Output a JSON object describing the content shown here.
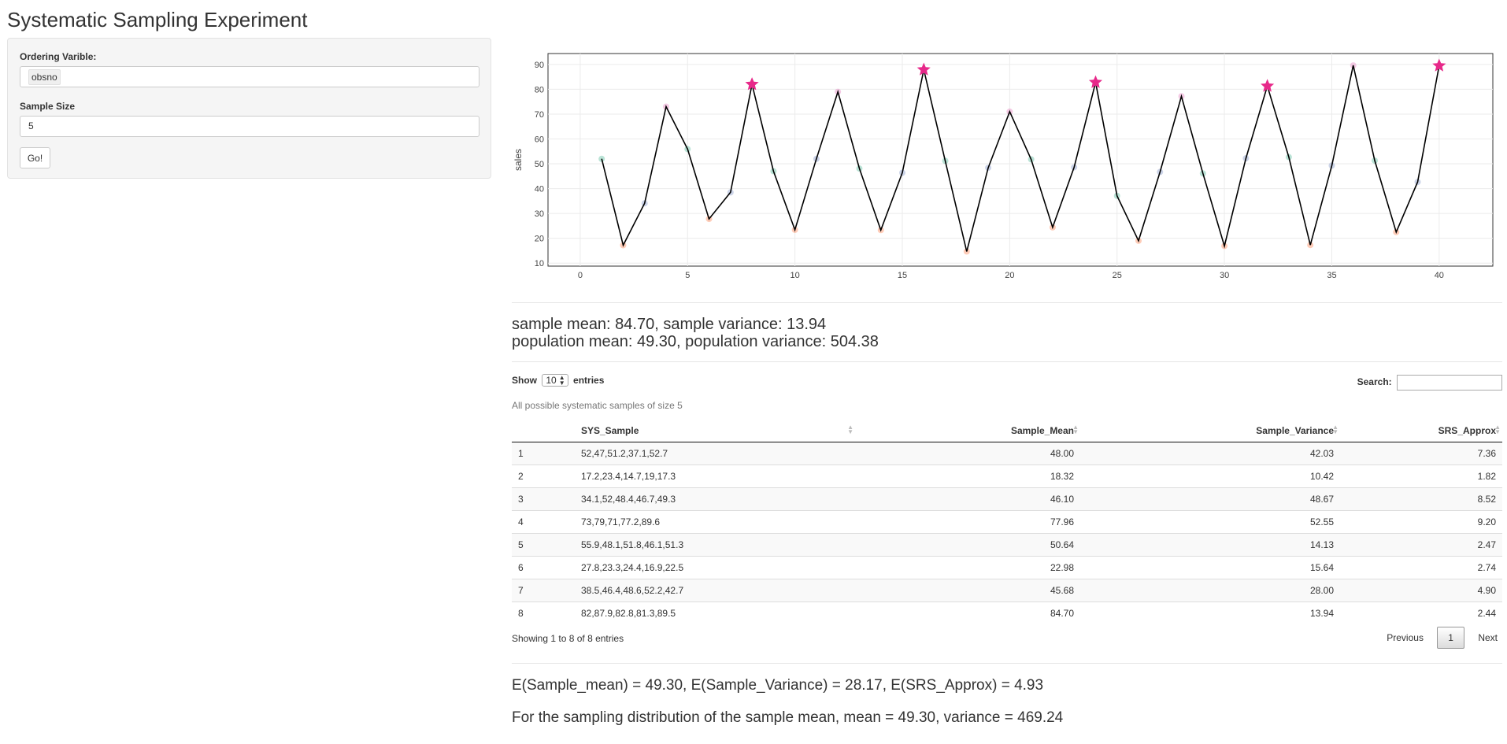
{
  "app": {
    "title": "Systematic Sampling Experiment"
  },
  "sidebar": {
    "ordering_label": "Ordering Varible:",
    "ordering_value": "obsno",
    "size_label": "Sample Size",
    "size_value": "5",
    "go_label": "Go!"
  },
  "chart_data": {
    "type": "scatter",
    "ylabel": "sales",
    "xlabel": "",
    "xlim": [
      -1.5,
      42.5
    ],
    "ylim": [
      8.8,
      94.4
    ],
    "x_ticks": [
      0,
      5,
      10,
      15,
      20,
      25,
      30,
      35,
      40
    ],
    "y_ticks": [
      10,
      20,
      30,
      40,
      50,
      60,
      70,
      80,
      90
    ],
    "grid": true,
    "legend": "none",
    "x": [
      1,
      2,
      3,
      4,
      5,
      6,
      7,
      8,
      9,
      10,
      11,
      12,
      13,
      14,
      15,
      16,
      17,
      18,
      19,
      20,
      21,
      22,
      23,
      24,
      25,
      26,
      27,
      28,
      29,
      30,
      31,
      32,
      33,
      34,
      35,
      36,
      37,
      38,
      39,
      40
    ],
    "y": [
      52,
      17.2,
      34.1,
      73,
      55.9,
      27.8,
      38.5,
      82,
      47,
      23.4,
      52,
      79,
      48.1,
      23.3,
      46.4,
      87.9,
      51.2,
      14.7,
      48.4,
      71,
      51.8,
      24.4,
      48.6,
      82.8,
      37.1,
      19,
      46.7,
      77.2,
      46.1,
      16.9,
      52.2,
      81.3,
      52.7,
      17.3,
      49.3,
      89.6,
      51.3,
      22.5,
      42.7,
      89.5
    ],
    "point_group": [
      1,
      2,
      3,
      4,
      5,
      6,
      7,
      8,
      1,
      2,
      3,
      4,
      5,
      6,
      7,
      8,
      1,
      2,
      3,
      4,
      5,
      6,
      7,
      8,
      1,
      2,
      3,
      4,
      5,
      6,
      7,
      8,
      1,
      2,
      3,
      4,
      5,
      6,
      7,
      8
    ],
    "selected_group": 8,
    "line_color": "#000000",
    "selected_marker": "star",
    "selected_color": "#e7298a",
    "group_colors": [
      "#66c2a5",
      "#fc8d62",
      "#8da0cb",
      "#e78ac3",
      "#66c2a5",
      "#fc8d62",
      "#8da0cb",
      "#e78ac3"
    ]
  },
  "stats": {
    "sample_line": "sample mean: 84.70, sample variance: 13.94",
    "population_line": "population mean: 49.30, population variance: 504.38"
  },
  "table": {
    "length_pre": "Show",
    "length_value": "10",
    "length_post": "entries",
    "search_label": "Search:",
    "caption": "All possible systematic samples of size 5",
    "columns": [
      "",
      "SYS_Sample",
      "Sample_Mean",
      "Sample_Variance",
      "SRS_Approx"
    ],
    "rows": [
      [
        "1",
        "52,47,51.2,37.1,52.7",
        "48.00",
        "42.03",
        "7.36"
      ],
      [
        "2",
        "17.2,23.4,14.7,19,17.3",
        "18.32",
        "10.42",
        "1.82"
      ],
      [
        "3",
        "34.1,52,48.4,46.7,49.3",
        "46.10",
        "48.67",
        "8.52"
      ],
      [
        "4",
        "73,79,71,77.2,89.6",
        "77.96",
        "52.55",
        "9.20"
      ],
      [
        "5",
        "55.9,48.1,51.8,46.1,51.3",
        "50.64",
        "14.13",
        "2.47"
      ],
      [
        "6",
        "27.8,23.3,24.4,16.9,22.5",
        "22.98",
        "15.64",
        "2.74"
      ],
      [
        "7",
        "38.5,46.4,48.6,52.2,42.7",
        "45.68",
        "28.00",
        "4.90"
      ],
      [
        "8",
        "82,87.9,82.8,81.3,89.5",
        "84.70",
        "13.94",
        "2.44"
      ]
    ],
    "info": "Showing 1 to 8 of 8 entries",
    "prev_label": "Previous",
    "page_label": "1",
    "next_label": "Next"
  },
  "footer": {
    "expectations": "E(Sample_mean) = 49.30, E(Sample_Variance) = 28.17, E(SRS_Approx) = 4.93",
    "distribution": "For the sampling distribution of the sample mean, mean = 49.30, variance = 469.24"
  }
}
